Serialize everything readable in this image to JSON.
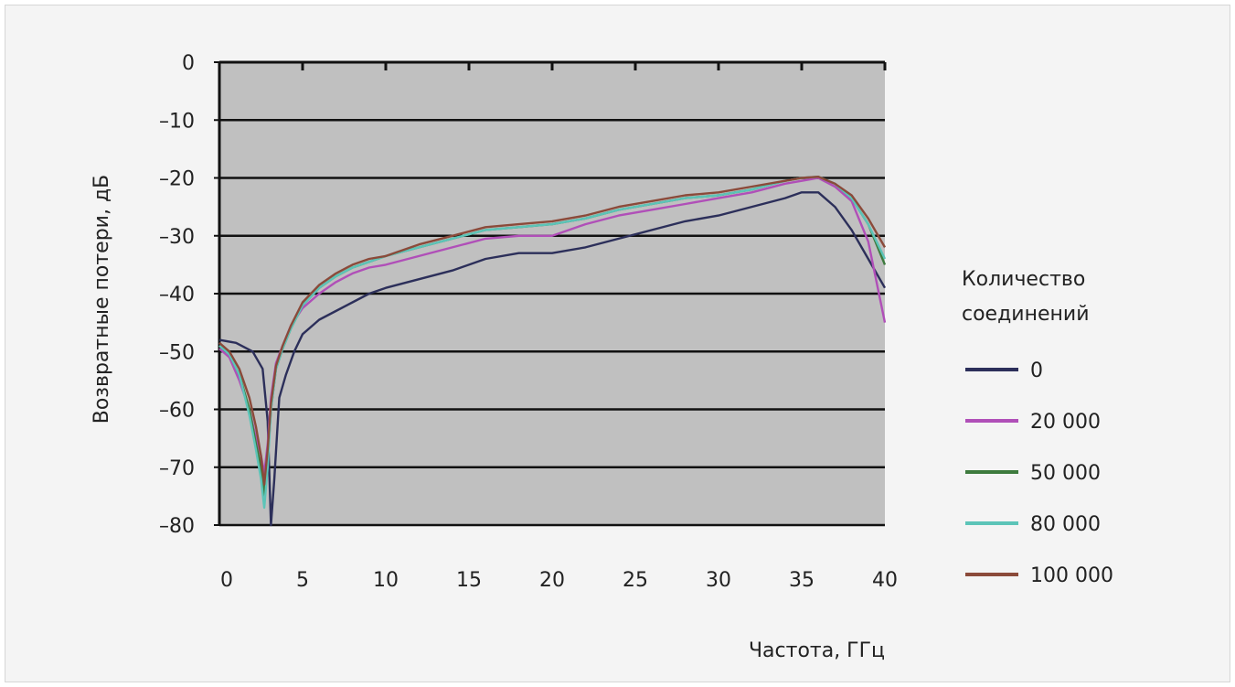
{
  "chart_data": {
    "type": "line",
    "title": "",
    "xlabel": "Частота, ГГц",
    "ylabel": "Возвратные потери, дБ",
    "xlim": [
      0,
      40
    ],
    "ylim": [
      -80,
      0
    ],
    "xticks": [
      0,
      5,
      10,
      15,
      20,
      25,
      30,
      35,
      40
    ],
    "xtick_labels": [
      "0",
      "5",
      "10",
      "15",
      "20",
      "25",
      "30",
      "35",
      "40"
    ],
    "yticks": [
      0,
      -10,
      -20,
      -30,
      -40,
      -50,
      -60,
      -70,
      -80
    ],
    "ytick_labels": [
      "0",
      "–10",
      "–20",
      "–30",
      "–40",
      "–50",
      "–60",
      "–70",
      "–80"
    ],
    "grid": true,
    "plot_background": "#c0c0c0",
    "legend": {
      "title_lines": [
        "Количество",
        "соединений"
      ],
      "position": "right"
    },
    "series": [
      {
        "name": "0",
        "color": "#2c2f5a",
        "x": [
          0,
          1,
          2,
          2.6,
          2.9,
          3.1,
          3.3,
          3.6,
          4,
          4.5,
          5,
          6,
          7,
          8,
          9,
          10,
          12,
          14,
          16,
          18,
          20,
          22,
          24,
          26,
          28,
          30,
          32,
          34,
          35,
          36,
          37,
          38,
          39,
          40
        ],
        "y": [
          -48,
          -48.5,
          -50,
          -53,
          -62,
          -80,
          -72,
          -58,
          -54,
          -50,
          -47,
          -44.5,
          -43,
          -41.5,
          -40,
          -39,
          -37.5,
          -36,
          -34,
          -33,
          -33,
          -32,
          -30.5,
          -29,
          -27.5,
          -26.5,
          -25,
          -23.5,
          -22.5,
          -22.5,
          -25,
          -29,
          -34,
          -39
        ]
      },
      {
        "name": "20 000",
        "color": "#b04fb8",
        "x": [
          0,
          0.6,
          1.2,
          1.8,
          2.2,
          2.5,
          2.7,
          2.9,
          3.1,
          3.4,
          3.8,
          4.3,
          5,
          6,
          7,
          8,
          9,
          10,
          12,
          14,
          16,
          18,
          20,
          22,
          24,
          26,
          28,
          30,
          32,
          34,
          35,
          36,
          37,
          38,
          39,
          40
        ],
        "y": [
          -49.5,
          -51,
          -55,
          -60,
          -65,
          -68,
          -71,
          -66,
          -58,
          -52,
          -49,
          -45.5,
          -42.5,
          -40,
          -38,
          -36.5,
          -35.5,
          -35,
          -33.5,
          -32,
          -30.5,
          -30,
          -30,
          -28,
          -26.5,
          -25.5,
          -24.5,
          -23.5,
          -22.5,
          -21,
          -20.5,
          -20,
          -21.5,
          -24,
          -31,
          -45
        ]
      },
      {
        "name": "50 000",
        "color": "#3d7a3d",
        "x": [
          0,
          0.6,
          1.2,
          1.8,
          2.2,
          2.5,
          2.7,
          2.9,
          3.1,
          3.4,
          3.8,
          4.3,
          5,
          6,
          7,
          8,
          9,
          10,
          12,
          14,
          16,
          18,
          20,
          22,
          24,
          26,
          28,
          30,
          32,
          34,
          35,
          36,
          37,
          38,
          39,
          40
        ],
        "y": [
          -49,
          -50.5,
          -54,
          -60,
          -66,
          -70,
          -75,
          -69,
          -60,
          -53,
          -49.5,
          -46,
          -42,
          -39,
          -37,
          -35.5,
          -34.5,
          -33.5,
          -32,
          -30.5,
          -29,
          -28.5,
          -28,
          -27,
          -25.5,
          -24.5,
          -23.5,
          -23,
          -22,
          -20.5,
          -20,
          -19.8,
          -21,
          -23.5,
          -28,
          -35
        ]
      },
      {
        "name": "80 000",
        "color": "#5cc4b8",
        "x": [
          0,
          0.6,
          1.2,
          1.8,
          2.2,
          2.5,
          2.7,
          2.9,
          3.1,
          3.4,
          3.8,
          4.3,
          5,
          6,
          7,
          8,
          9,
          10,
          12,
          14,
          16,
          18,
          20,
          22,
          24,
          26,
          28,
          30,
          32,
          34,
          35,
          36,
          37,
          38,
          39,
          40
        ],
        "y": [
          -49,
          -50.5,
          -54,
          -61,
          -67,
          -72,
          -77,
          -70,
          -60,
          -53,
          -49.5,
          -46,
          -42,
          -39,
          -37,
          -35.5,
          -34.5,
          -33.5,
          -32,
          -30.5,
          -29,
          -28.5,
          -28,
          -27,
          -25.5,
          -24.5,
          -23.5,
          -23,
          -22,
          -20.5,
          -20,
          -19.8,
          -21,
          -23.5,
          -28,
          -34
        ]
      },
      {
        "name": "100 000",
        "color": "#8b4a3a",
        "x": [
          0,
          0.6,
          1.2,
          1.8,
          2.2,
          2.5,
          2.7,
          2.9,
          3.1,
          3.4,
          3.8,
          4.3,
          5,
          6,
          7,
          8,
          9,
          10,
          12,
          14,
          16,
          18,
          20,
          22,
          24,
          26,
          28,
          30,
          32,
          34,
          35,
          36,
          37,
          38,
          39,
          40
        ],
        "y": [
          -48.5,
          -50,
          -53,
          -58,
          -63,
          -68,
          -73,
          -67,
          -59,
          -52.5,
          -49,
          -45.5,
          -41.5,
          -38.5,
          -36.5,
          -35,
          -34,
          -33.5,
          -31.5,
          -30,
          -28.5,
          -28,
          -27.5,
          -26.5,
          -25,
          -24,
          -23,
          -22.5,
          -21.5,
          -20.5,
          -20,
          -19.8,
          -21,
          -23,
          -27,
          -32
        ]
      }
    ]
  }
}
